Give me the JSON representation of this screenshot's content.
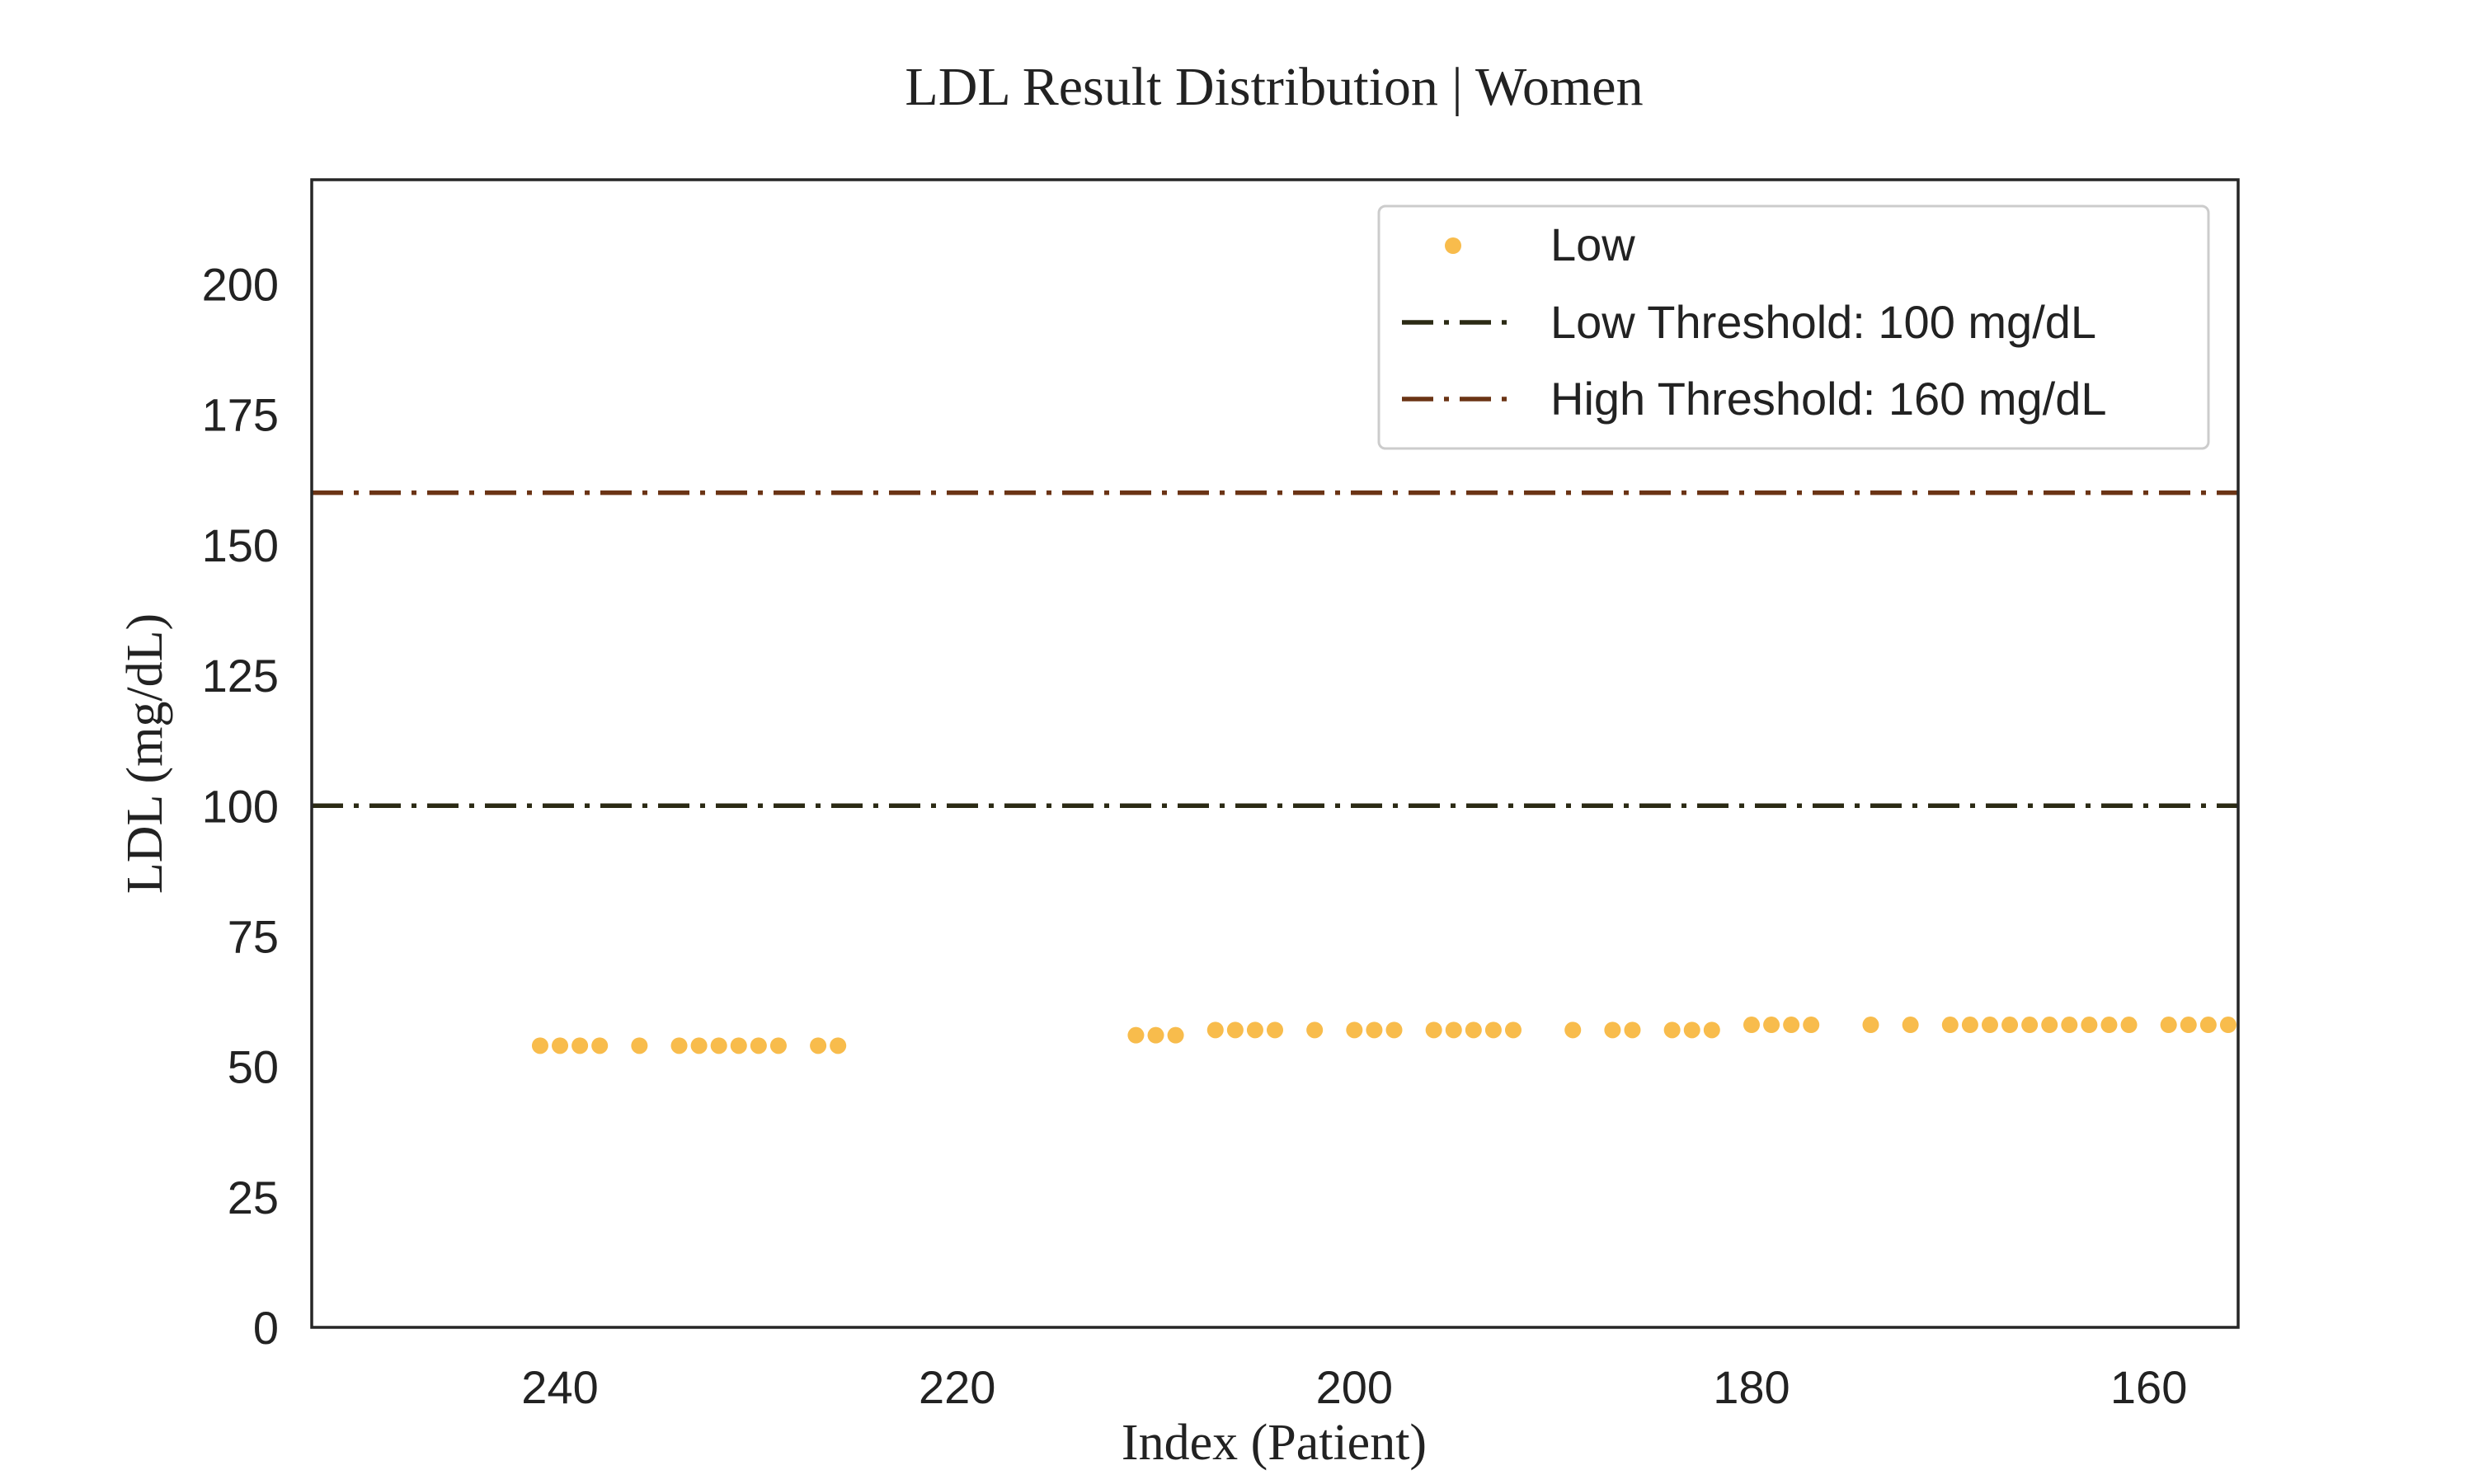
{
  "chart_data": {
    "type": "scatter",
    "title": "LDL Result Distribution | Women",
    "xlabel": "Index (Patient)",
    "ylabel": "LDL (mg/dL)",
    "xlim": [
      252.5,
      155.5
    ],
    "ylim": [
      0,
      220
    ],
    "x_inverted": true,
    "xticks": [
      240,
      220,
      200,
      180,
      160
    ],
    "yticks": [
      0,
      25,
      50,
      75,
      100,
      125,
      150,
      175,
      200
    ],
    "grid": false,
    "legend_position": "top-right",
    "series": [
      {
        "name": "Low",
        "color": "#f8bc4c",
        "x": [
          241,
          240,
          239,
          238,
          236,
          234,
          233,
          232,
          231,
          230,
          229,
          227,
          226,
          211,
          210,
          209,
          207,
          206,
          205,
          204,
          202,
          200,
          199,
          198,
          196,
          195,
          194,
          193,
          192,
          189,
          187,
          186,
          184,
          183,
          182,
          180,
          179,
          178,
          177,
          174,
          172,
          170,
          169,
          168,
          167,
          166,
          165,
          164,
          163,
          162,
          161,
          159,
          158,
          157,
          156
        ],
        "y": [
          54,
          54,
          54,
          54,
          54,
          54,
          54,
          54,
          54,
          54,
          54,
          54,
          54,
          56,
          56,
          56,
          57,
          57,
          57,
          57,
          57,
          57,
          57,
          57,
          57,
          57,
          57,
          57,
          57,
          57,
          57,
          57,
          57,
          57,
          57,
          58,
          58,
          58,
          58,
          58,
          58,
          58,
          58,
          58,
          58,
          58,
          58,
          58,
          58,
          58,
          58,
          58,
          58,
          58,
          58
        ]
      }
    ],
    "thresholds": [
      {
        "name": "Low Threshold: 100 mg/dL",
        "value": 100,
        "color": "#2b2a14",
        "style": "dashdot"
      },
      {
        "name": "High Threshold: 160 mg/dL",
        "value": 160,
        "color": "#6b3415",
        "style": "dashdot"
      }
    ]
  }
}
